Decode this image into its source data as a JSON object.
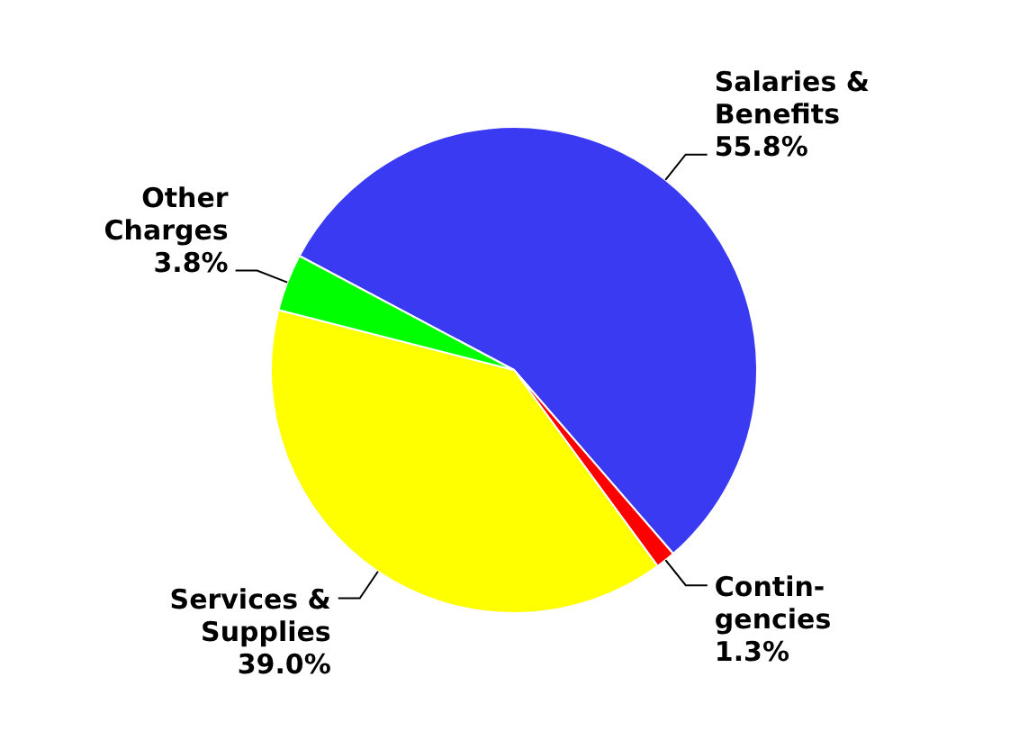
{
  "chart_data": {
    "type": "pie",
    "categories": [
      "Salaries & Benefits",
      "Contin-gencies",
      "Services & Supplies",
      "Other Charges"
    ],
    "values": [
      55.8,
      1.3,
      39.0,
      3.8
    ],
    "value_labels": [
      "55.8%",
      "1.3%",
      "39.0%",
      "3.8%"
    ],
    "colors": [
      "#3a3af2",
      "#ff0000",
      "#ffff00",
      "#00ff00"
    ],
    "legend": false
  }
}
